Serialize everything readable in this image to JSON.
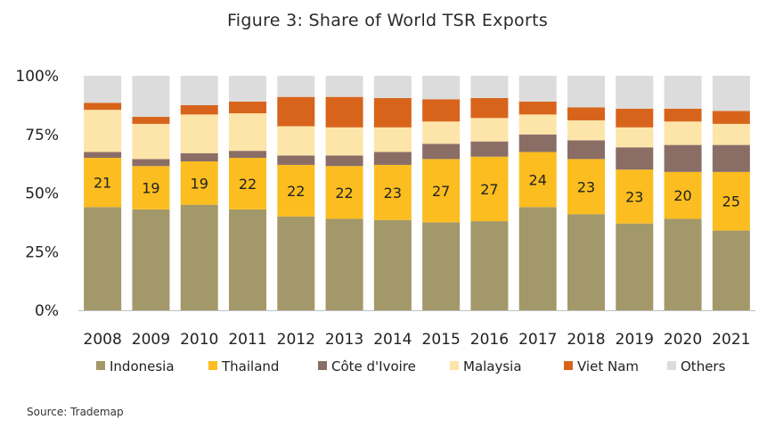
{
  "chart_data": {
    "type": "bar",
    "stacked": true,
    "percent_stacked": true,
    "title": "Figure 3: Share of World TSR Exports",
    "categories": [
      "2008",
      "2009",
      "2010",
      "2011",
      "2012",
      "2013",
      "2014",
      "2015",
      "2016",
      "2017",
      "2018",
      "2019",
      "2020",
      "2021"
    ],
    "y_ticks": [
      "0%",
      "25%",
      "50%",
      "75%",
      "100%"
    ],
    "ylim": [
      0,
      100
    ],
    "grid": false,
    "legend_position": "bottom",
    "series": [
      {
        "name": "Indonesia",
        "color": "#a39869",
        "values": [
          44,
          43,
          45,
          43,
          40,
          39,
          38.5,
          37.5,
          38,
          44,
          41,
          37,
          39,
          34
        ]
      },
      {
        "name": "Thailand",
        "color": "#fbbd20",
        "values": [
          21,
          18.5,
          18.5,
          22,
          22,
          22.5,
          23.5,
          27,
          27.5,
          23.5,
          23.5,
          23,
          20,
          25
        ]
      },
      {
        "name": "Côte d'Ivoire",
        "color": "#8a6e66",
        "values": [
          2.5,
          3,
          3.5,
          3,
          4,
          4.5,
          5.5,
          6.5,
          6.5,
          7.5,
          8,
          9.5,
          11.5,
          11.5
        ]
      },
      {
        "name": "Malaysia",
        "color": "#fde4a8",
        "values": [
          18,
          15,
          16.5,
          16,
          12.5,
          12,
          10.5,
          9.5,
          10,
          8.5,
          8.5,
          8.5,
          10,
          9
        ]
      },
      {
        "name": "Viet Nam",
        "color": "#d8641c",
        "values": [
          3,
          3,
          4,
          5,
          12.5,
          13,
          12.5,
          9.5,
          8.5,
          5.5,
          5.5,
          8,
          5.5,
          5.5
        ]
      },
      {
        "name": "Others",
        "color": "#dcdcdc",
        "values": [
          11.5,
          17.5,
          12.5,
          11,
          9,
          9,
          9.5,
          10,
          9.5,
          11,
          13.5,
          14,
          14,
          15
        ]
      }
    ],
    "data_labels": {
      "series": "Thailand",
      "values": [
        "21",
        "19",
        "19",
        "22",
        "22",
        "22",
        "23",
        "27",
        "27",
        "24",
        "23",
        "23",
        "20",
        "25"
      ]
    }
  },
  "source": "Source: Trademap"
}
